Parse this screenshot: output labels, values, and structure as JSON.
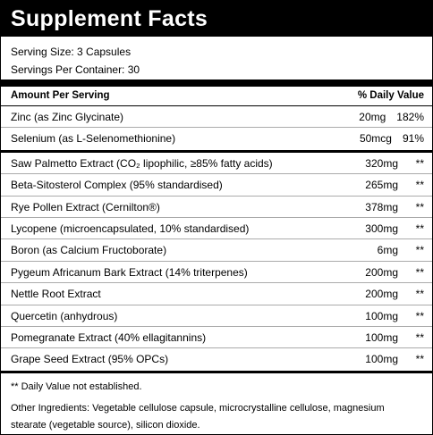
{
  "header": {
    "title": "Supplement Facts"
  },
  "serving": [
    "Serving Size: 3 Capsules",
    "Servings Per Container: 30"
  ],
  "columns": [
    "Amount Per Serving",
    "% Daily Value"
  ],
  "groups": [
    [
      [
        "Zinc (as Zinc Glycinate)",
        "20mg",
        "182%"
      ],
      [
        "Selenium (as L-Selenomethionine)",
        "50mcg",
        "91%"
      ]
    ],
    [
      [
        "Saw Palmetto Extract (CO₂ lipophilic, ≥85% fatty acids)",
        "320mg",
        "**"
      ],
      [
        "Beta-Sitosterol Complex (95% standardised)",
        "265mg",
        "**"
      ],
      [
        "Rye Pollen Extract (Cernilton®)",
        "378mg",
        "**"
      ],
      [
        "Lycopene (microencapsulated, 10% standardised)",
        "300mg",
        "**"
      ],
      [
        "Boron (as Calcium Fructoborate)",
        "6mg",
        "**"
      ],
      [
        "Pygeum Africanum Bark Extract (14% triterpenes)",
        "200mg",
        "**"
      ],
      [
        "Nettle Root Extract",
        "200mg",
        "**"
      ],
      [
        "Quercetin (anhydrous)",
        "100mg",
        "**"
      ],
      [
        "Pomegranate Extract (40% ellagitannins)",
        "100mg",
        "**"
      ],
      [
        "Grape Seed Extract (95% OPCs)",
        "100mg",
        "**"
      ]
    ]
  ],
  "footnote": "** Daily Value not established.",
  "other_ingredients": "Other Ingredients: Vegetable cellulose capsule, microcrystalline cellulose, magnesium stearate (vegetable source), silicon dioxide."
}
